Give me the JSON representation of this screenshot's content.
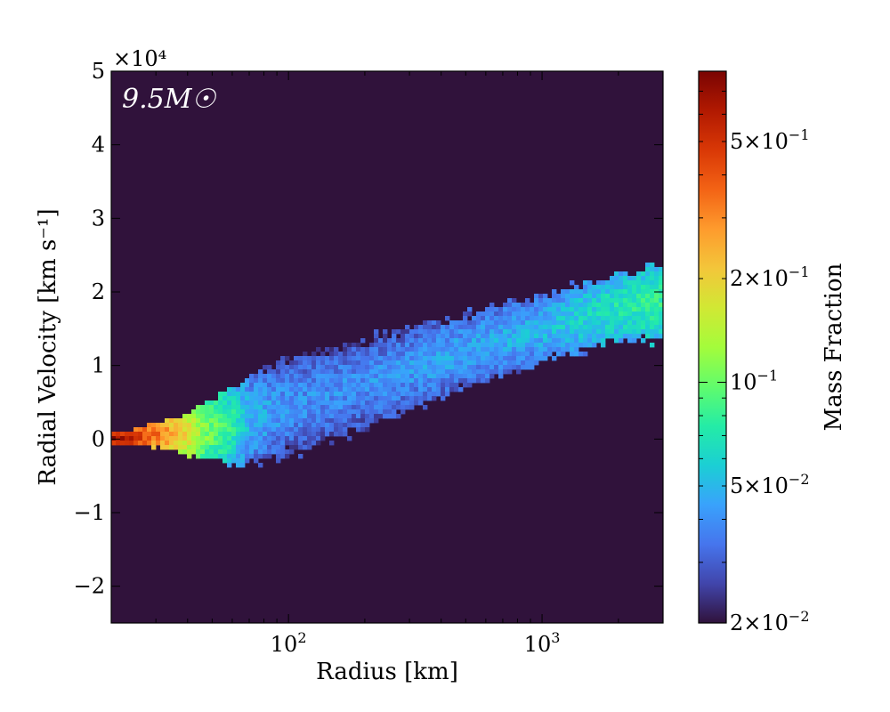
{
  "chart_data": {
    "type": "heatmap",
    "title": "",
    "xlabel": "Radius [km]",
    "ylabel": "Radial Velocity [km s⁻¹]",
    "x_scale": "log",
    "xlim": [
      20,
      3000
    ],
    "ylim": [
      -25000,
      50000
    ],
    "y_multiplier": "×10⁴",
    "x_ticks": [
      {
        "value": 100,
        "base": "10",
        "exp": "2"
      },
      {
        "value": 1000,
        "base": "10",
        "exp": "3"
      }
    ],
    "y_ticks": [
      {
        "value": -20000,
        "label": "−2"
      },
      {
        "value": -10000,
        "label": "−1"
      },
      {
        "value": 0,
        "label": "0"
      },
      {
        "value": 10000,
        "label": "1"
      },
      {
        "value": 20000,
        "label": "2"
      },
      {
        "value": 30000,
        "label": "3"
      },
      {
        "value": 40000,
        "label": "4"
      },
      {
        "value": 50000,
        "label": "5"
      }
    ],
    "annotation": "9.5M☉",
    "colorbar": {
      "label": "Mass Fraction",
      "scale": "log",
      "range": [
        0.02,
        0.8
      ],
      "ticks": [
        {
          "value": 0.02,
          "mant": "2",
          "exp": "−2"
        },
        {
          "value": 0.05,
          "mant": "5",
          "exp": "−2"
        },
        {
          "value": 0.1,
          "mant": "",
          "exp": "−1"
        },
        {
          "value": 0.2,
          "mant": "2",
          "exp": "−1"
        },
        {
          "value": 0.5,
          "mant": "5",
          "exp": "−1"
        }
      ],
      "colormap": [
        "#30123b",
        "#4145ab",
        "#4675ed",
        "#39a2fc",
        "#1bcfd4",
        "#24eca6",
        "#61fc6c",
        "#a4fc3b",
        "#d1e834",
        "#f3c63a",
        "#fe9b2d",
        "#f36315",
        "#d93806",
        "#b11901",
        "#7a0402"
      ]
    },
    "background_value": 0.02,
    "distribution": {
      "description_ridge": [
        {
          "r": 20,
          "v_center": 0,
          "v_half_width": 800,
          "value": 0.7
        },
        {
          "r": 30,
          "v_center": 500,
          "v_half_width": 1500,
          "value": 0.35
        },
        {
          "r": 45,
          "v_center": 1000,
          "v_half_width": 3500,
          "value": 0.12
        },
        {
          "r": 70,
          "v_center": 2500,
          "v_half_width": 6000,
          "value": 0.05
        },
        {
          "r": 100,
          "v_center": 4500,
          "v_half_width": 6500,
          "value": 0.04
        },
        {
          "r": 200,
          "v_center": 7500,
          "v_half_width": 6000,
          "value": 0.04
        },
        {
          "r": 500,
          "v_center": 12000,
          "v_half_width": 5000,
          "value": 0.045
        },
        {
          "r": 1000,
          "v_center": 15000,
          "v_half_width": 4500,
          "value": 0.05
        },
        {
          "r": 2000,
          "v_center": 18000,
          "v_half_width": 4500,
          "value": 0.07
        },
        {
          "r": 3000,
          "v_center": 18500,
          "v_half_width": 5000,
          "value": 0.08
        }
      ]
    }
  }
}
